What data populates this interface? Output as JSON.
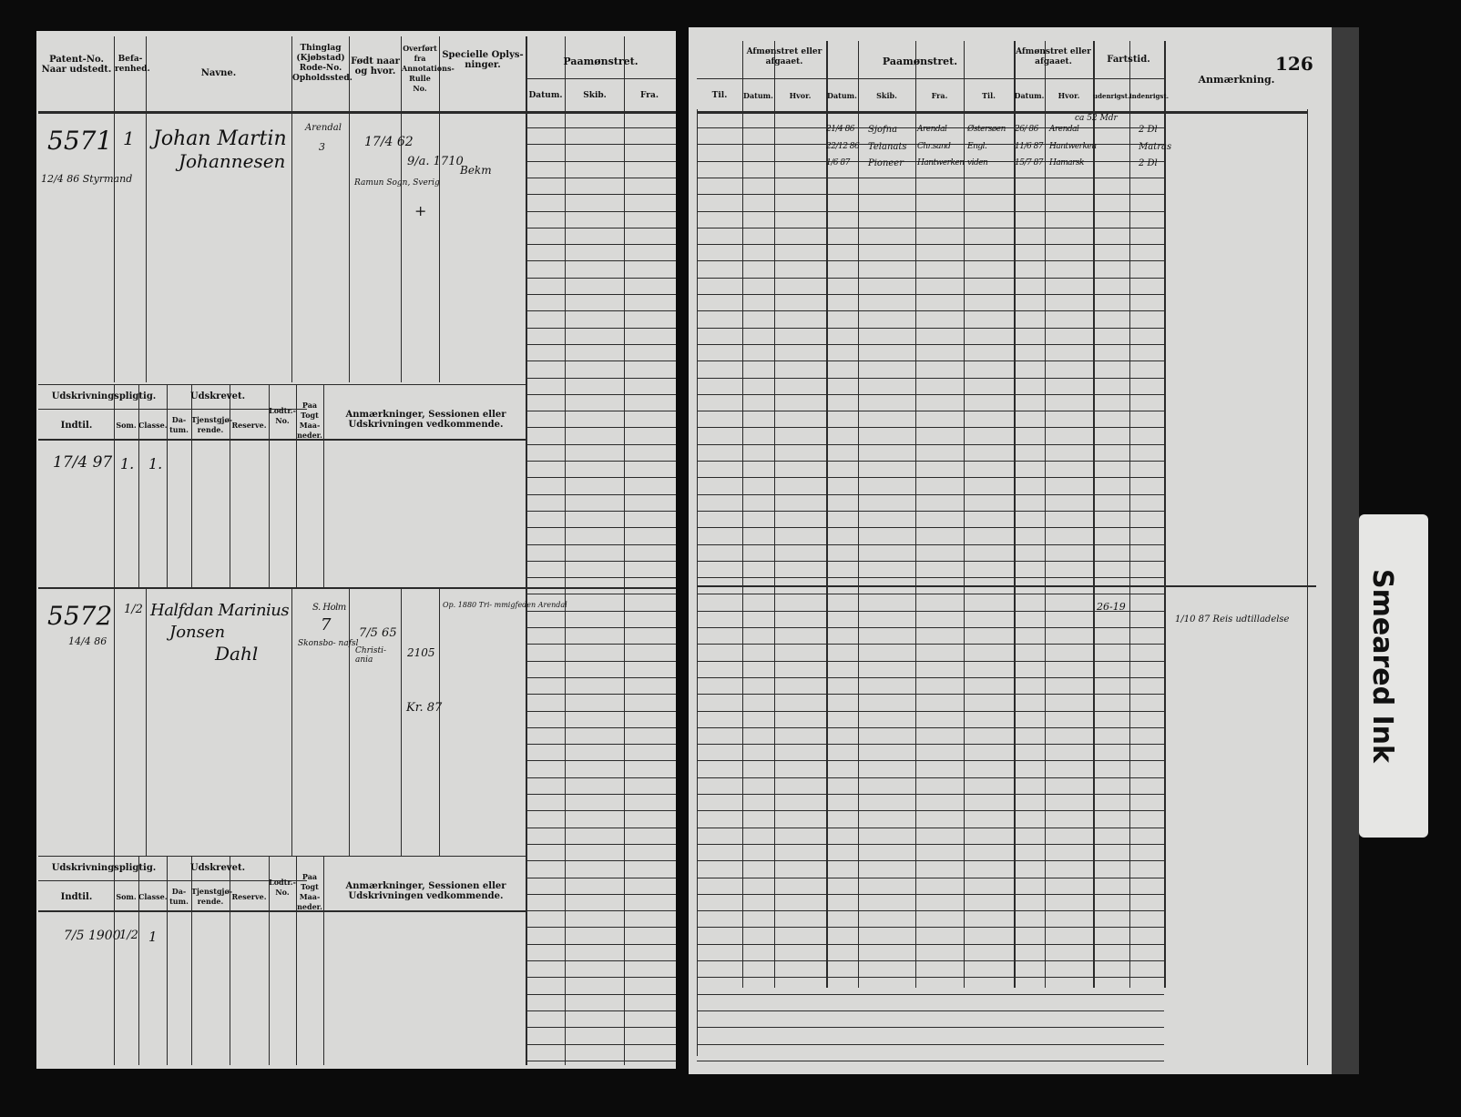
{
  "page_number": "126",
  "left_headers": {
    "patent": "Patent-No. Naar udstedt.",
    "befarenhed": "Befa-renhed.",
    "navne": "Navne.",
    "thinglag": "Thinglag (Kjøbstad) Rode-No. Opholdssted.",
    "fodt": "Født naar og hvor.",
    "overfort": "Overført fra Annotations-Rulle No.",
    "specielle": "Specielle Oplys-ninger.",
    "paamonstret": "Paamønstret.",
    "datum": "Datum.",
    "skib": "Skib.",
    "fra": "Fra."
  },
  "lower_headers": {
    "udskrivningspligtig": "Udskrivningspligtig.",
    "udskrevet": "Udskrevet.",
    "indtil": "Indtil.",
    "som": "Som.",
    "classe": "Classe.",
    "datum": "Da-tum.",
    "tjenstgjorende": "Tjenstgjø-rende.",
    "reserve": "Reserve.",
    "lodtr": "Lodtr.-No.",
    "paa_togt": "Paa Togt Maa-neder.",
    "anmaerkninger": "Anmærkninger, Sessionen eller Udskrivningen vedkommende."
  },
  "right_headers": {
    "til": "Til.",
    "afmonstret1": "Afmønstret eller afgaaet.",
    "datum": "Datum.",
    "hvor": "Hvor.",
    "paamonstret": "Paamønstret.",
    "skib": "Skib.",
    "fra": "Fra.",
    "afmonstret2": "Afmønstret eller afgaaet.",
    "fartstid": "Fartstid.",
    "udenrigst": "udenrigst.",
    "indenrigst": "indenrigst.",
    "anmaerkning": "Anmærkning."
  },
  "entries": [
    {
      "patent_no": "5571",
      "issued": "12/4 86 Styrmand",
      "befarenhed": "1",
      "name_line1": "Johan Martin",
      "name_line2": "Johannesen",
      "thinglag": "Arendal",
      "rode": "3",
      "born_date": "17/4 62",
      "born_place": "Ramun Sogn, Sverig",
      "overfort": "9/a. 1710",
      "overfort_mark": "+",
      "specielle": "Bekm",
      "indtil": "17/4 97",
      "som": "1.",
      "classe": "1.",
      "voyages": [
        {
          "datum": "21/4 86",
          "skib": "Sjofna",
          "fra": "Arendal",
          "til": "Østersøen",
          "af_datum": "26/ 86",
          "af_hvor": "Arendal",
          "udenrigst": "ca 52 Mdr",
          "indenrigst": "2 Dl"
        },
        {
          "datum": "22/12 86",
          "skib": "Telanats",
          "fra": "Chr.sand",
          "til": "Engl.",
          "af_datum": "11/6 87",
          "af_hvor": "Hantwerken",
          "udenrigst": "",
          "indenrigst": "Matras"
        },
        {
          "datum": "1/6 87",
          "skib": "Pioneer",
          "fra": "Hantwerken",
          "til": "viden",
          "af_datum": "15/7 87",
          "af_hvor": "Hamarsk",
          "udenrigst": "",
          "indenrigst": "2 Dl"
        }
      ]
    },
    {
      "patent_no": "5572",
      "issued": "14/4 86",
      "befarenhed": "1/2",
      "name_line1": "Halfdan Marinius",
      "name_line2": "Jonsen",
      "name_line3": "Dahl",
      "thinglag": "S. Holm",
      "rode": "7",
      "thinglag2": "Skonsbo- nafsl",
      "born_date": "7/5 65",
      "born_place": "Christi- ania",
      "overfort": "2105",
      "overfort_mark": "Kr. 87",
      "specielle": "Op. 1880 Tri- mmigfeden Arendal",
      "indtil": "7/5 1900",
      "som": "1/2",
      "classe": "1",
      "fartstid": "26-19",
      "anmaerkning": "1/10 87 Reis udtilladelse"
    }
  ],
  "tab_label": "Smeared Ink"
}
